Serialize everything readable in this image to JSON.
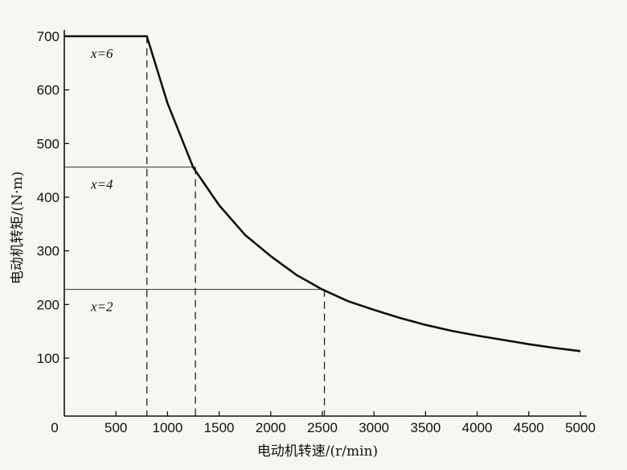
{
  "chart_data": {
    "type": "line",
    "xlabel": "电动机转速/(r/min)",
    "ylabel": "电动机转矩/(N·m)",
    "xlim": [
      0,
      5000
    ],
    "ylim": [
      50,
      700
    ],
    "x_ticks": [
      "0",
      "500",
      "1000",
      "1500",
      "2000",
      "2500",
      "3000",
      "3500",
      "4000",
      "4500",
      "5000"
    ],
    "y_ticks": [
      "100",
      "200",
      "300",
      "400",
      "500",
      "600",
      "700"
    ],
    "grid": false,
    "legend": "none",
    "series": [
      {
        "x": [
          0,
          800,
          1000,
          1250,
          1500,
          1750,
          2000,
          2250,
          2500,
          2750,
          3000,
          3250,
          3500,
          3750,
          4000,
          4250,
          4500,
          4750,
          5000
        ],
        "y": [
          700,
          700,
          575,
          455,
          385,
          330,
          290,
          255,
          228,
          206,
          190,
          175,
          162,
          151,
          142,
          134,
          126,
          119,
          113
        ]
      }
    ],
    "annotations": [
      {
        "text": "x=6",
        "x": 800,
        "y": 700
      },
      {
        "text": "x=4",
        "x": 1270,
        "y": 456
      },
      {
        "text": "x=2",
        "x": 2520,
        "y": 228
      }
    ]
  }
}
